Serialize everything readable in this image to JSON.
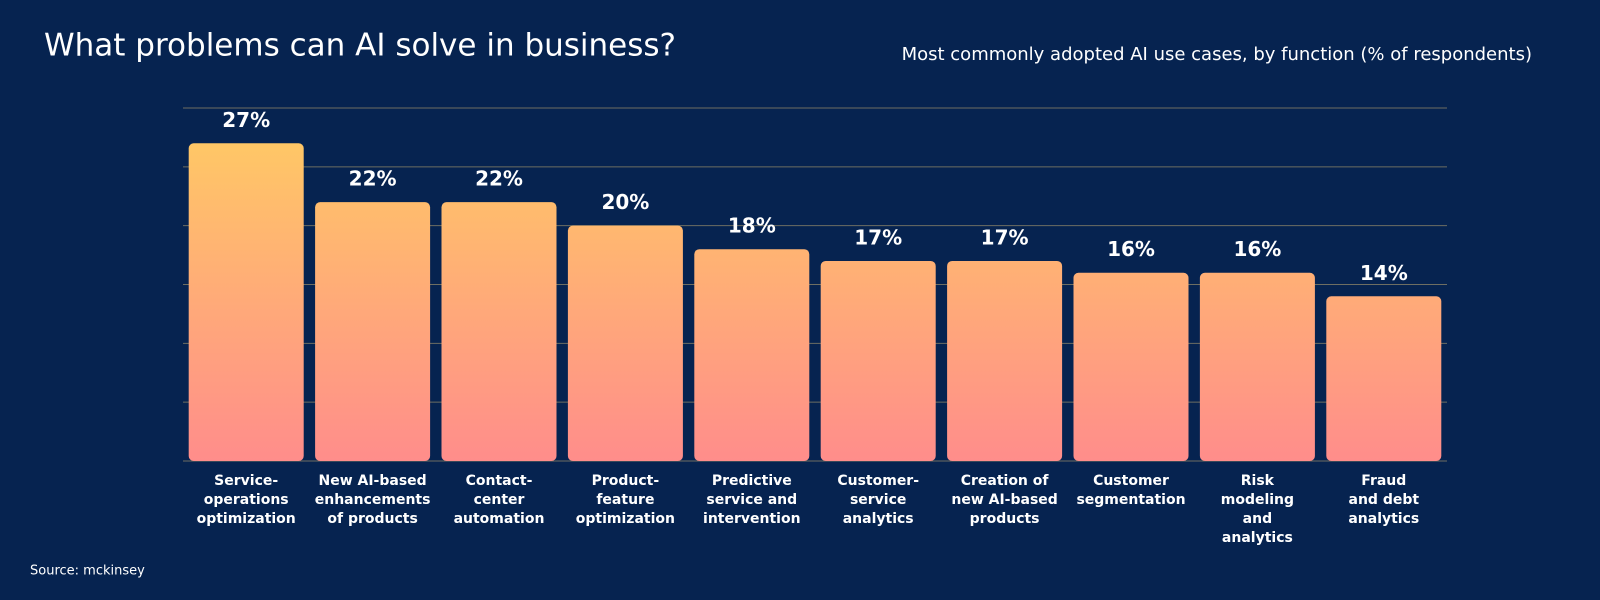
{
  "chart_data": {
    "type": "bar",
    "title": "What problems can AI solve in business?",
    "subtitle": "Most commonly adopted AI use cases, by function (% of respondents)",
    "source": "Source: mckinsey",
    "categories": [
      "Service-\noperations\noptimization",
      "New AI-based\nenhancements\nof products",
      "Contact-\ncenter\nautomation",
      "Product-\nfeature\noptimization",
      "Predictive\nservice and\nintervention",
      "Customer-\nservice\nanalytics",
      "Creation of\nnew AI-based\nproducts",
      "Customer\nsegmentation",
      "Risk\nmodeling\nand\nanalytics",
      "Fraud\nand debt\nanalytics"
    ],
    "values": [
      27,
      22,
      22,
      20,
      18,
      17,
      17,
      16,
      16,
      14
    ],
    "value_labels": [
      "27%",
      "22%",
      "22%",
      "20%",
      "18%",
      "17%",
      "17%",
      "16%",
      "16%",
      "14%"
    ],
    "gradient": [
      "#ffc766",
      "#ff8d8b"
    ],
    "ylim": [
      0,
      30
    ],
    "yticks": [
      0,
      5,
      10,
      15,
      20,
      25,
      30
    ],
    "grid": true
  }
}
